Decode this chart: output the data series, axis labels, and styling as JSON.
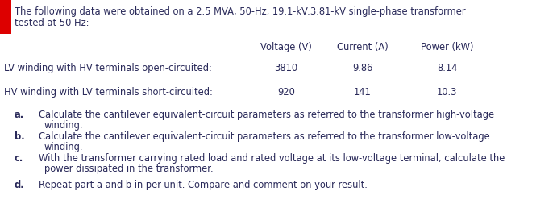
{
  "title_line1": "The following data were obtained on a 2.5 MVA, 50-Hz, 19.1-kV:3.81-kV single-phase transformer",
  "title_line2": "tested at 50 Hz:",
  "col_headers": [
    "Voltage (V)",
    "Current (A)",
    "Power (kW)"
  ],
  "row1_label": "LV winding with HV terminals open-circuited:",
  "row1_data": [
    "3810",
    "9.86",
    "8.14"
  ],
  "row2_label": "HV winding with LV terminals short-circuited:",
  "row2_data": [
    "920",
    "141",
    "10.3"
  ],
  "q_letters": [
    "a.",
    "b.",
    "c.",
    "d."
  ],
  "q_line1": [
    "Calculate the cantilever equivalent-circuit parameters as referred to the transformer high-voltage",
    "Calculate the cantilever equivalent-circuit parameters as referred to the transformer low-voltage",
    "With the transformer carrying rated load and rated voltage at its low-voltage terminal, calculate the",
    "Repeat part a and b in per-unit. Compare and comment on your result."
  ],
  "q_line2": [
    "winding.",
    "winding.",
    "power dissipated in the transformer.",
    ""
  ],
  "red_color": "#dd0000",
  "text_color": "#2a2a5a",
  "bg_color": "#ffffff",
  "font_size": 8.3
}
